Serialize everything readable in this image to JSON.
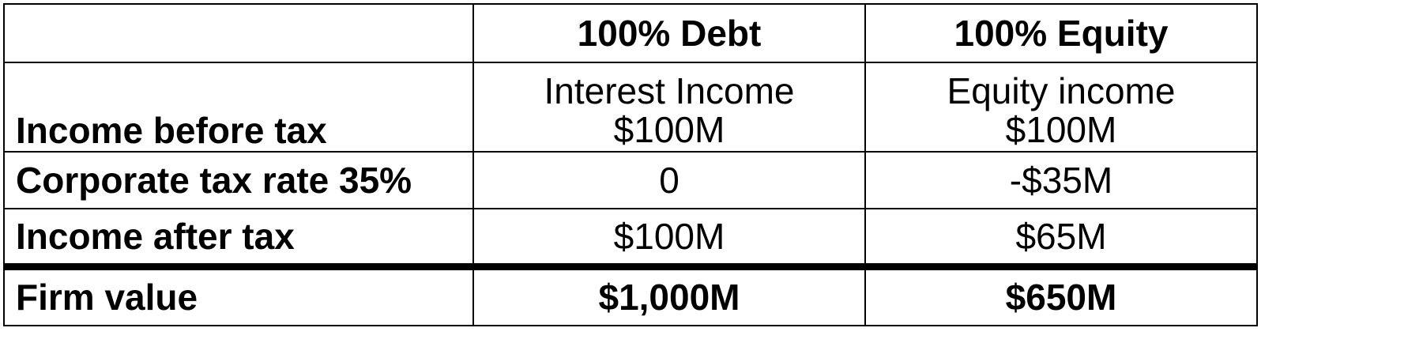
{
  "table": {
    "header": {
      "label": "",
      "col1": "100% Debt",
      "col2": "100% Equity"
    },
    "rows": [
      {
        "label": "Income before tax",
        "col1_line1": "Interest Income",
        "col1_line2": "$100M",
        "col2_line1": "Equity income",
        "col2_line2": "$100M"
      },
      {
        "label": "Corporate tax rate 35%",
        "col1": "0",
        "col2": "-$35M"
      },
      {
        "label": "Income after tax",
        "col1": "$100M",
        "col2": "$65M"
      },
      {
        "label": "Firm value",
        "col1": "$1,000M",
        "col2": "$650M"
      }
    ]
  }
}
